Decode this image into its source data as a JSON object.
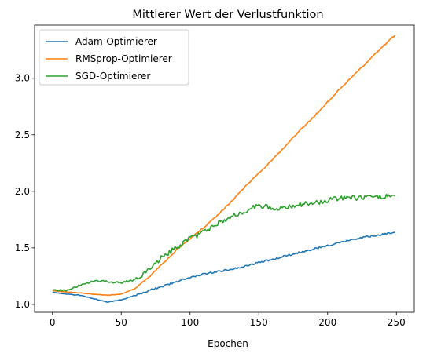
{
  "chart_data": {
    "type": "line",
    "title": "Mittlerer Wert der Verlustfunktion",
    "xlabel": "Epochen",
    "ylabel": "",
    "xlim": [
      -13,
      263
    ],
    "ylim": [
      0.93,
      3.47
    ],
    "xticks": [
      0,
      50,
      100,
      150,
      200,
      250
    ],
    "yticks": [
      1.0,
      1.5,
      2.0,
      2.5,
      3.0
    ],
    "ytick_labels": [
      "1.0",
      "1.5",
      "2.0",
      "2.5",
      "3.0"
    ],
    "grid": false,
    "legend_position": "upper left",
    "series": [
      {
        "name": "Adam-Optimierer",
        "color": "#1f77b4",
        "x": [
          0,
          10,
          20,
          30,
          40,
          50,
          60,
          70,
          80,
          90,
          100,
          110,
          120,
          130,
          140,
          150,
          160,
          170,
          180,
          190,
          200,
          210,
          220,
          230,
          240,
          249
        ],
        "y": [
          1.11,
          1.09,
          1.08,
          1.05,
          1.02,
          1.04,
          1.08,
          1.12,
          1.16,
          1.2,
          1.24,
          1.27,
          1.29,
          1.31,
          1.34,
          1.37,
          1.4,
          1.43,
          1.46,
          1.49,
          1.52,
          1.55,
          1.58,
          1.6,
          1.62,
          1.64
        ]
      },
      {
        "name": "RMSprop-Optimierer",
        "color": "#ff7f0e",
        "x": [
          0,
          10,
          20,
          30,
          40,
          50,
          60,
          70,
          80,
          90,
          100,
          110,
          120,
          130,
          140,
          150,
          160,
          170,
          180,
          190,
          200,
          210,
          220,
          230,
          240,
          249
        ],
        "y": [
          1.12,
          1.11,
          1.1,
          1.09,
          1.08,
          1.09,
          1.14,
          1.24,
          1.36,
          1.48,
          1.58,
          1.68,
          1.79,
          1.91,
          2.04,
          2.16,
          2.28,
          2.41,
          2.54,
          2.66,
          2.79,
          2.92,
          3.04,
          3.16,
          3.28,
          3.38
        ]
      },
      {
        "name": "SGD-Optimierer",
        "color": "#2ca02c",
        "x": [
          0,
          10,
          20,
          30,
          40,
          50,
          60,
          70,
          80,
          90,
          100,
          110,
          120,
          130,
          140,
          150,
          160,
          170,
          180,
          190,
          200,
          210,
          220,
          230,
          240,
          249
        ],
        "y": [
          1.13,
          1.12,
          1.17,
          1.21,
          1.2,
          1.19,
          1.22,
          1.3,
          1.42,
          1.5,
          1.58,
          1.64,
          1.72,
          1.77,
          1.82,
          1.88,
          1.85,
          1.86,
          1.88,
          1.9,
          1.92,
          1.94,
          1.94,
          1.95,
          1.95,
          1.96
        ]
      }
    ]
  }
}
